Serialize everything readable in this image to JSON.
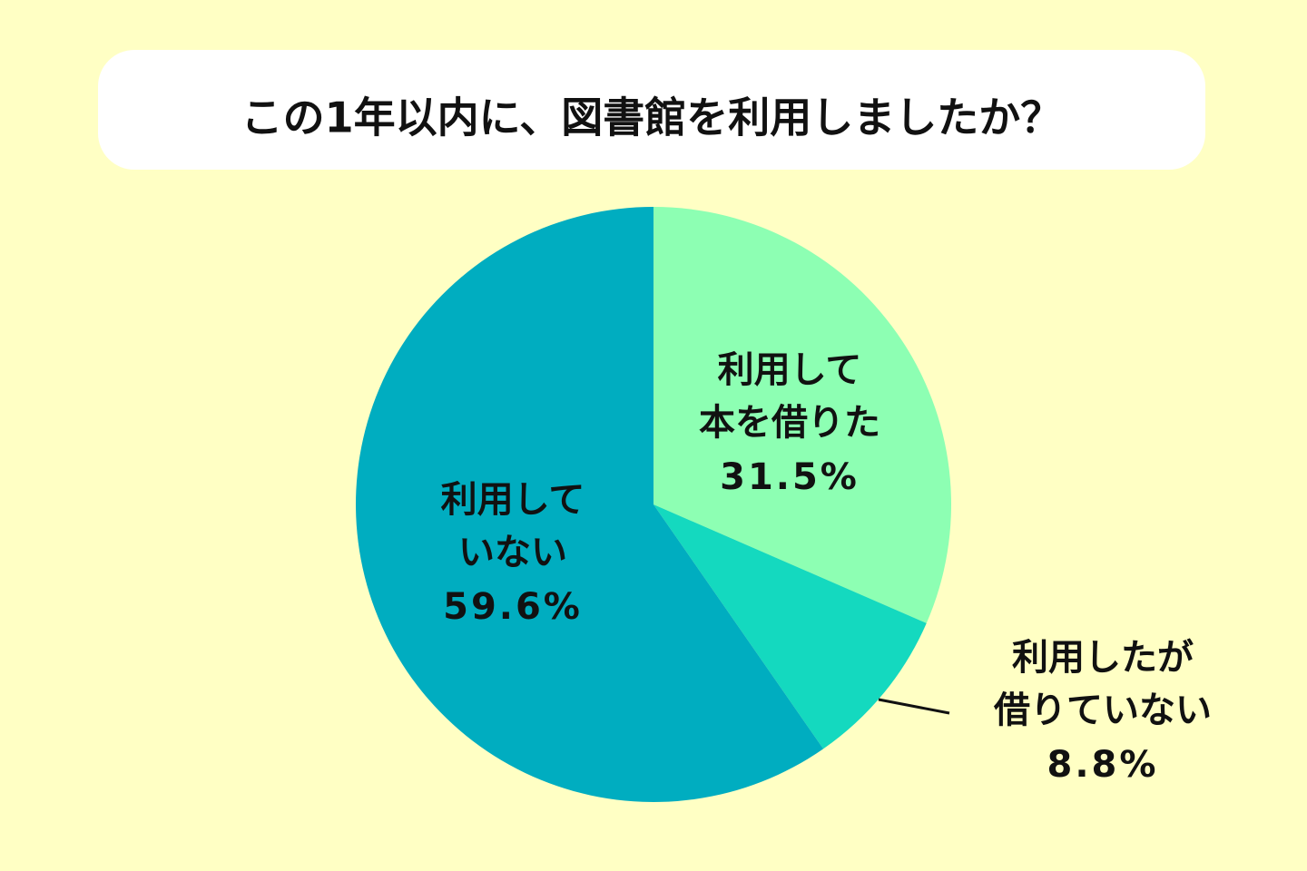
{
  "chart_data": {
    "type": "pie",
    "title": "この1年以内に、図書館を利用しましたか？",
    "categories": [
      "利用して\n本を借りた",
      "利用したが\n借りていない",
      "利用して\nいない"
    ],
    "values": [
      31.5,
      8.8,
      59.6
    ],
    "value_labels": [
      "31.5%",
      "8.8%",
      "59.6%"
    ],
    "colors": [
      "#8dffb3",
      "#14d9bf",
      "#00adc0"
    ]
  }
}
